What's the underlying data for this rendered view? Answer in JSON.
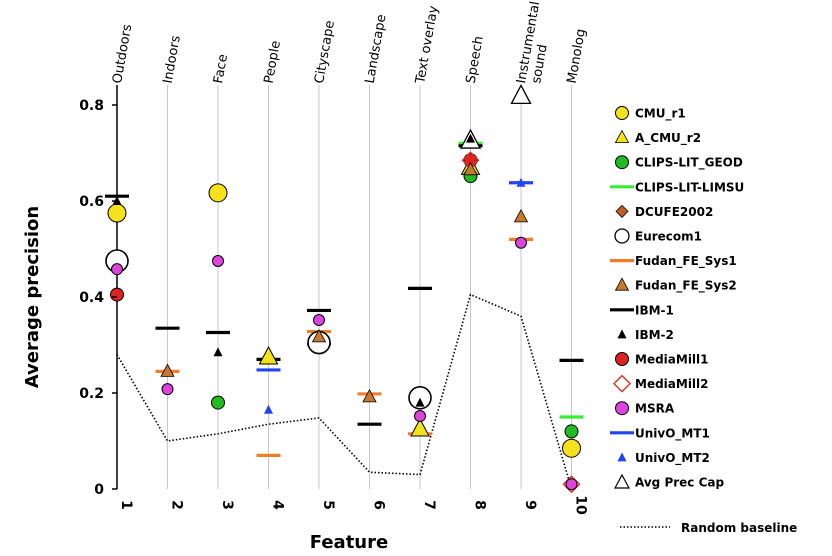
{
  "chart_data": {
    "type": "scatter",
    "xlabel": "Feature",
    "ylabel": "Average precision",
    "x_ticks": [
      "1",
      "2",
      "3",
      "4",
      "5",
      "6",
      "7",
      "8",
      "9",
      "10"
    ],
    "categories": [
      "Outdoors",
      "Indoors",
      "Face",
      "People",
      "Cityscape",
      "Landscape",
      "Text overlay",
      "Speech",
      "Instrumental sound",
      "Monolog"
    ],
    "category_lines": [
      [
        "Outdoors"
      ],
      [
        "Indoors"
      ],
      [
        "Face"
      ],
      [
        "People"
      ],
      [
        "Cityscape"
      ],
      [
        "Landscape"
      ],
      [
        "Text overlay"
      ],
      [
        "Speech"
      ],
      [
        "Instrumental",
        "sound"
      ],
      [
        "Monolog"
      ]
    ],
    "ylim": [
      0,
      0.8
    ],
    "y_ticks": [
      "0",
      "0.2",
      "0.4",
      "0.6",
      "0.8"
    ],
    "y_tick_values": [
      0,
      0.2,
      0.4,
      0.6,
      0.8
    ],
    "grid": "vertical lines at each feature",
    "legend": "right",
    "series": [
      {
        "name": "CMU_r1",
        "marker": "circle-large",
        "color": "#f5e21a",
        "points": [
          [
            1,
            0.575
          ],
          [
            3,
            0.617
          ],
          [
            10,
            0.085
          ]
        ]
      },
      {
        "name": "A_CMU_r2",
        "marker": "triangle-large",
        "color": "#f5e21a",
        "points": [
          [
            4,
            0.275
          ],
          [
            7,
            0.125
          ],
          [
            8,
            0.67
          ]
        ]
      },
      {
        "name": "CLIPS-LIT_GEOD",
        "marker": "circle",
        "color": "#22bb22",
        "points": [
          [
            3,
            0.18
          ],
          [
            8,
            0.652
          ],
          [
            10,
            0.12
          ]
        ]
      },
      {
        "name": "CLIPS-LIT-LIMSU",
        "marker": "dash",
        "color": "#33ee33",
        "points": [
          [
            8,
            0.72
          ],
          [
            10,
            0.15
          ]
        ]
      },
      {
        "name": "DCUFE2002",
        "marker": "diamond",
        "color": "#c05a28",
        "points": []
      },
      {
        "name": "Eurecom1",
        "marker": "circle-open-large",
        "color": "#000000",
        "points": [
          [
            1,
            0.475
          ],
          [
            5,
            0.305
          ],
          [
            7,
            0.19
          ]
        ]
      },
      {
        "name": "Fudan_FE_Sys1",
        "marker": "dash",
        "color": "#f07d28",
        "points": [
          [
            2,
            0.245
          ],
          [
            4,
            0.07
          ],
          [
            5,
            0.328
          ],
          [
            6,
            0.198
          ],
          [
            7,
            0.115
          ],
          [
            9,
            0.52
          ]
        ]
      },
      {
        "name": "Fudan_FE_Sys2",
        "marker": "triangle",
        "color": "#c8782d",
        "points": [
          [
            2,
            0.245
          ],
          [
            5,
            0.317
          ],
          [
            6,
            0.192
          ],
          [
            8,
            0.665
          ],
          [
            9,
            0.567
          ]
        ]
      },
      {
        "name": "IBM-1",
        "marker": "dash",
        "color": "#000000",
        "points": [
          [
            1,
            0.61
          ],
          [
            2,
            0.335
          ],
          [
            3,
            0.326
          ],
          [
            4,
            0.27
          ],
          [
            5,
            0.372
          ],
          [
            6,
            0.135
          ],
          [
            7,
            0.418
          ],
          [
            8,
            0.715
          ],
          [
            10,
            0.268
          ]
        ]
      },
      {
        "name": "IBM-2",
        "marker": "triangle-small",
        "color": "#000000",
        "points": [
          [
            1,
            0.6
          ],
          [
            3,
            0.285
          ],
          [
            7,
            0.18
          ],
          [
            8,
            0.73
          ]
        ]
      },
      {
        "name": "MediaMill1",
        "marker": "circle",
        "color": "#dd2222",
        "points": [
          [
            1,
            0.405
          ],
          [
            8,
            0.685
          ]
        ]
      },
      {
        "name": "MediaMill2",
        "marker": "diamond-open",
        "color": "#dd3322",
        "points": [
          [
            8,
            0.685
          ],
          [
            10,
            0.01
          ]
        ]
      },
      {
        "name": "MSRA",
        "marker": "circle-small",
        "color": "#dd44dd",
        "points": [
          [
            1,
            0.458
          ],
          [
            2,
            0.208
          ],
          [
            3,
            0.475
          ],
          [
            5,
            0.352
          ],
          [
            7,
            0.152
          ],
          [
            9,
            0.513
          ],
          [
            10,
            0.01
          ]
        ]
      },
      {
        "name": "UnivO_MT1",
        "marker": "dash",
        "color": "#2244ee",
        "points": [
          [
            4,
            0.248
          ],
          [
            5,
            0.302
          ],
          [
            9,
            0.638
          ]
        ]
      },
      {
        "name": "UnivO_MT2",
        "marker": "triangle-small",
        "color": "#2244ee",
        "points": [
          [
            4,
            0.165
          ],
          [
            9,
            0.638
          ]
        ]
      },
      {
        "name": "Avg Prec Cap",
        "marker": "triangle-open-large",
        "color": "#000000",
        "points": [
          [
            8,
            0.727
          ],
          [
            9,
            0.82
          ]
        ]
      }
    ],
    "baseline": {
      "name": "Random baseline",
      "style": "dotted",
      "color": "#000000",
      "points": [
        [
          1,
          0.28
        ],
        [
          2,
          0.1
        ],
        [
          3,
          0.115
        ],
        [
          4,
          0.135
        ],
        [
          5,
          0.148
        ],
        [
          6,
          0.035
        ],
        [
          7,
          0.03
        ],
        [
          8,
          0.405
        ],
        [
          9,
          0.36
        ],
        [
          10,
          0.0
        ]
      ]
    }
  }
}
